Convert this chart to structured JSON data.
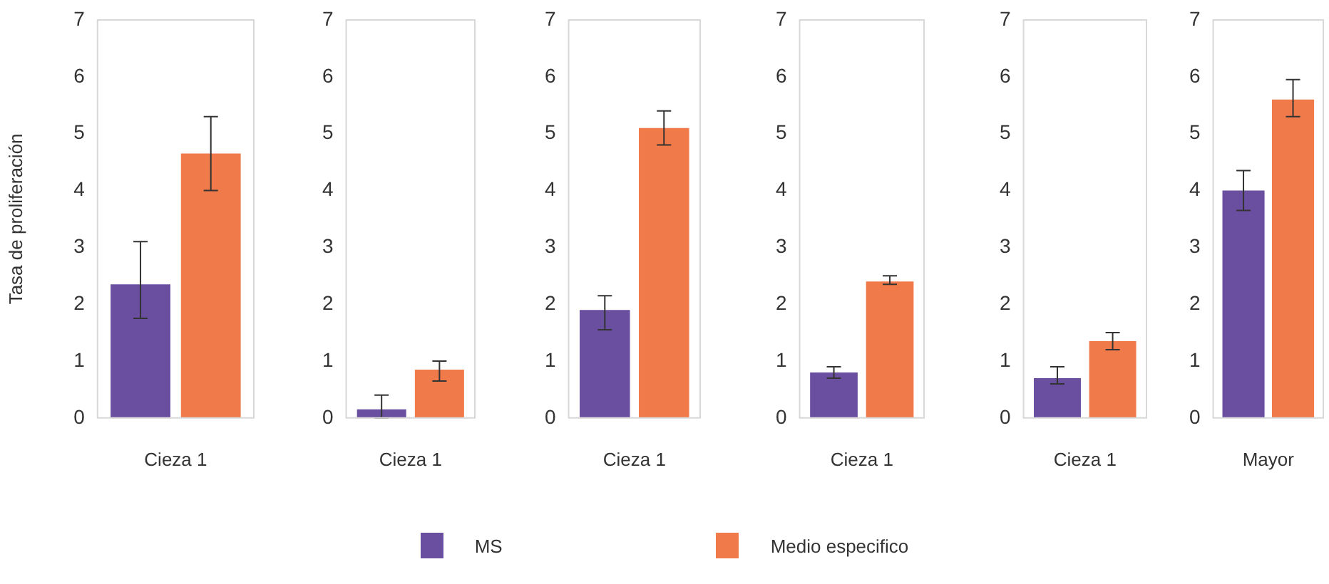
{
  "chart_data": [
    {
      "type": "bar",
      "ylabel": "Tasa de proliferación",
      "categories": [
        "Cieza 1"
      ],
      "ylim": [
        0,
        7
      ],
      "yticks": [
        0,
        1,
        2,
        3,
        4,
        5,
        6,
        7
      ],
      "grid": false,
      "legend": "bottom",
      "series": [
        {
          "name": "MS",
          "color": "#6a4fa0",
          "values": [
            2.35
          ],
          "errors": [
            [
              1.75,
              3.1
            ]
          ]
        },
        {
          "name": "Medio especifico",
          "color": "#f07a4a",
          "values": [
            4.65
          ],
          "errors": [
            [
              4.0,
              5.3
            ]
          ]
        }
      ]
    },
    {
      "type": "bar",
      "categories": [
        "Cieza 1"
      ],
      "ylim": [
        0,
        7
      ],
      "yticks": [
        0,
        1,
        2,
        3,
        4,
        5,
        6,
        7
      ],
      "grid": false,
      "series": [
        {
          "color": "#6a4fa0",
          "values": [
            0.15
          ],
          "errors": [
            [
              0,
              0.4
            ]
          ]
        },
        {
          "color": "#f07a4a",
          "values": [
            0.85
          ],
          "errors": [
            [
              0.65,
              1.0
            ]
          ]
        }
      ]
    },
    {
      "type": "bar",
      "categories": [
        "Cieza 1"
      ],
      "ylim": [
        0,
        7
      ],
      "yticks": [
        0,
        1,
        2,
        3,
        4,
        5,
        6,
        7
      ],
      "grid": false,
      "series": [
        {
          "color": "#6a4fa0",
          "values": [
            1.9
          ],
          "errors": [
            [
              1.55,
              2.15
            ]
          ]
        },
        {
          "color": "#f07a4a",
          "values": [
            5.1
          ],
          "errors": [
            [
              4.8,
              5.4
            ]
          ]
        }
      ]
    },
    {
      "type": "bar",
      "categories": [
        "Cieza 1"
      ],
      "ylim": [
        0,
        7
      ],
      "yticks": [
        0,
        1,
        2,
        3,
        4,
        5,
        6,
        7
      ],
      "grid": false,
      "series": [
        {
          "color": "#6a4fa0",
          "values": [
            0.8
          ],
          "errors": [
            [
              0.7,
              0.9
            ]
          ]
        },
        {
          "color": "#f07a4a",
          "values": [
            2.4
          ],
          "errors": [
            [
              2.35,
              2.5
            ]
          ]
        }
      ]
    },
    {
      "type": "bar",
      "categories": [
        "Cieza 1"
      ],
      "ylim": [
        0,
        7
      ],
      "yticks": [
        0,
        1,
        2,
        3,
        4,
        5,
        6,
        7
      ],
      "grid": false,
      "series": [
        {
          "color": "#6a4fa0",
          "values": [
            0.7
          ],
          "errors": [
            [
              0.6,
              0.9
            ]
          ]
        },
        {
          "color": "#f07a4a",
          "values": [
            1.35
          ],
          "errors": [
            [
              1.2,
              1.5
            ]
          ]
        }
      ]
    },
    {
      "type": "bar",
      "categories": [
        "Mayor"
      ],
      "ylim": [
        0,
        7
      ],
      "yticks": [
        0,
        1,
        2,
        3,
        4,
        5,
        6,
        7
      ],
      "grid": false,
      "series": [
        {
          "color": "#6a4fa0",
          "values": [
            4.0
          ],
          "errors": [
            [
              3.65,
              4.35
            ]
          ]
        },
        {
          "color": "#f07a4a",
          "values": [
            5.6
          ],
          "errors": [
            [
              5.3,
              5.95
            ]
          ]
        }
      ]
    }
  ]
}
